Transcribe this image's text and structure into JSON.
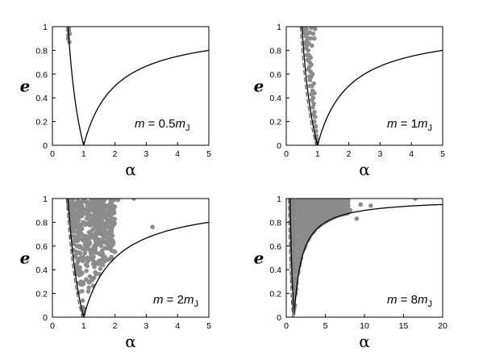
{
  "colors": {
    "points": "#8c8c8c",
    "curve": "#000000",
    "frame": "#000000"
  },
  "chart_data": [
    {
      "type": "scatter",
      "annotation": {
        "m": "m",
        "eq": " = ",
        "value": "0.5",
        "unit": "m",
        "unit_sub": "J"
      },
      "xlabel": "α",
      "ylabel": "e",
      "xlim": [
        0,
        5
      ],
      "ylim": [
        0,
        1
      ],
      "xticks": [
        0,
        1,
        2,
        3,
        4,
        5
      ],
      "yticks": [
        0,
        0.2,
        0.4,
        0.6,
        0.8,
        1
      ],
      "grid": false,
      "curve": "e = |1 - 1/α|",
      "points": [
        [
          0.5,
          0.97
        ],
        [
          0.52,
          0.99
        ],
        [
          0.51,
          0.93
        ],
        [
          0.53,
          0.96
        ],
        [
          0.5,
          0.9
        ],
        [
          0.54,
          0.87
        ],
        [
          0.52,
          0.98
        ],
        [
          0.55,
          0.94
        ]
      ]
    },
    {
      "type": "scatter",
      "annotation": {
        "m": "m",
        "eq": " = ",
        "value": "1",
        "unit": "m",
        "unit_sub": "J"
      },
      "xlabel": "α",
      "ylabel": "e",
      "xlim": [
        0,
        5
      ],
      "ylim": [
        0,
        1
      ],
      "xticks": [
        0,
        1,
        2,
        3,
        4,
        5
      ],
      "yticks": [
        0,
        0.2,
        0.4,
        0.6,
        0.8,
        1
      ],
      "grid": false,
      "curve": "e = |1 - 1/α|",
      "points": [
        [
          0.55,
          0.99
        ],
        [
          0.6,
          0.97
        ],
        [
          0.62,
          0.92
        ],
        [
          0.58,
          0.95
        ],
        [
          0.65,
          0.88
        ],
        [
          0.66,
          0.84
        ],
        [
          0.7,
          0.8
        ],
        [
          0.72,
          0.76
        ],
        [
          0.68,
          0.72
        ],
        [
          0.75,
          0.7
        ],
        [
          0.74,
          0.66
        ],
        [
          0.78,
          0.62
        ],
        [
          0.8,
          0.58
        ],
        [
          0.76,
          0.55
        ],
        [
          0.82,
          0.5
        ],
        [
          0.84,
          0.46
        ],
        [
          0.8,
          0.43
        ],
        [
          0.86,
          0.4
        ],
        [
          0.88,
          0.35
        ],
        [
          0.85,
          0.32
        ],
        [
          0.9,
          0.28
        ],
        [
          0.92,
          0.24
        ],
        [
          0.9,
          0.2
        ],
        [
          0.94,
          0.16
        ],
        [
          0.95,
          0.12
        ],
        [
          0.96,
          0.08
        ],
        [
          0.97,
          0.05
        ],
        [
          0.98,
          0.02
        ],
        [
          0.7,
          0.9
        ],
        [
          0.75,
          0.95
        ],
        [
          0.8,
          0.99
        ],
        [
          0.65,
          0.98
        ],
        [
          0.72,
          0.86
        ],
        [
          0.78,
          0.74
        ],
        [
          0.84,
          0.6
        ],
        [
          0.88,
          0.52
        ],
        [
          0.9,
          0.44
        ],
        [
          0.86,
          0.94
        ],
        [
          0.82,
          0.84
        ],
        [
          0.9,
          0.9
        ],
        [
          0.63,
          0.82
        ],
        [
          0.7,
          0.64
        ],
        [
          0.76,
          0.5
        ],
        [
          0.82,
          0.38
        ],
        [
          0.87,
          0.26
        ],
        [
          0.6,
          0.86
        ],
        [
          0.66,
          0.76
        ],
        [
          0.74,
          0.58
        ],
        [
          0.8,
          0.68
        ],
        [
          0.92,
          0.98
        ],
        [
          0.78,
          0.9
        ],
        [
          0.68,
          0.94
        ]
      ]
    },
    {
      "type": "scatter",
      "annotation": {
        "m": "m",
        "eq": " = ",
        "value": "2",
        "unit": "m",
        "unit_sub": "J"
      },
      "xlabel": "α",
      "ylabel": "e",
      "xlim": [
        0,
        5
      ],
      "ylim": [
        0,
        1
      ],
      "xticks": [
        0,
        1,
        2,
        3,
        4,
        5
      ],
      "yticks": [
        0,
        0.2,
        0.4,
        0.6,
        0.8,
        1
      ],
      "grid": false,
      "curve": "e = |1 - 1/α|",
      "region": {
        "alpha_max": 2.0
      },
      "points": [
        [
          2.6,
          1.0
        ],
        [
          3.2,
          0.76
        ],
        [
          2.1,
          0.99
        ],
        [
          1.95,
          0.62
        ],
        [
          2.0,
          0.55
        ],
        [
          1.9,
          0.5
        ],
        [
          0.55,
          0.99
        ],
        [
          0.6,
          0.95
        ],
        [
          0.62,
          0.9
        ],
        [
          0.65,
          0.84
        ],
        [
          0.68,
          0.78
        ],
        [
          0.72,
          0.72
        ],
        [
          0.75,
          0.66
        ],
        [
          0.78,
          0.6
        ],
        [
          0.82,
          0.54
        ],
        [
          0.85,
          0.48
        ],
        [
          0.88,
          0.42
        ],
        [
          0.9,
          0.36
        ],
        [
          0.92,
          0.3
        ],
        [
          0.95,
          0.22
        ],
        [
          0.97,
          0.14
        ],
        [
          0.98,
          0.08
        ],
        [
          1.0,
          0.03
        ]
      ]
    },
    {
      "type": "scatter",
      "annotation": {
        "m": "m",
        "eq": " = ",
        "value": "8",
        "unit": "m",
        "unit_sub": "J"
      },
      "xlabel": "α",
      "ylabel": "e",
      "xlim": [
        0,
        20
      ],
      "ylim": [
        0,
        1
      ],
      "xticks": [
        0,
        5,
        10,
        15,
        20
      ],
      "yticks": [
        0,
        0.2,
        0.4,
        0.6,
        0.8,
        1
      ],
      "grid": false,
      "curve": "e = |1 - 1/α|",
      "region": {
        "alpha_max": 8.0
      },
      "points": [
        [
          16.5,
          1.0
        ],
        [
          10.8,
          0.94
        ],
        [
          9.0,
          0.83
        ],
        [
          8.2,
          0.9
        ],
        [
          9.5,
          0.95
        ],
        [
          1.1,
          0.1
        ],
        [
          1.2,
          0.2
        ],
        [
          1.3,
          0.3
        ],
        [
          1.5,
          0.4
        ],
        [
          1.7,
          0.5
        ],
        [
          2.0,
          0.6
        ],
        [
          2.5,
          0.7
        ],
        [
          3.2,
          0.78
        ],
        [
          4.5,
          0.82
        ],
        [
          6.0,
          0.88
        ]
      ]
    }
  ]
}
